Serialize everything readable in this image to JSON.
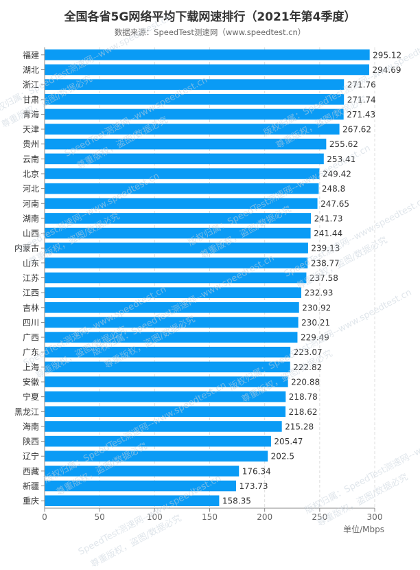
{
  "chart_data": {
    "type": "bar",
    "orientation": "horizontal",
    "title": "全国各省5G网络平均下载网速排行（2021年第4季度）",
    "subtitle": "数据来源：SpeedTest测速网（www.speedtest.cn）",
    "unit_label": "单位/Mbps",
    "categories": [
      "福建",
      "湖北",
      "浙江",
      "甘肃",
      "青海",
      "天津",
      "贵州",
      "云南",
      "北京",
      "河北",
      "河南",
      "湖南",
      "山西",
      "内蒙古",
      "山东",
      "江苏",
      "江西",
      "吉林",
      "四川",
      "广西",
      "广东",
      "上海",
      "安徽",
      "宁夏",
      "黑龙江",
      "海南",
      "陕西",
      "辽宁",
      "西藏",
      "新疆",
      "重庆"
    ],
    "values": [
      295.12,
      294.69,
      271.76,
      271.74,
      271.43,
      267.62,
      255.62,
      253.41,
      249.42,
      248.8,
      247.65,
      241.73,
      241.44,
      239.13,
      238.77,
      237.58,
      232.93,
      230.92,
      230.21,
      229.49,
      223.07,
      222.82,
      220.88,
      218.78,
      218.62,
      215.28,
      205.47,
      202.5,
      176.34,
      173.73,
      158.35
    ],
    "value_labels": [
      "295.12",
      "294.69",
      "271.76",
      "271.74",
      "271.43",
      "267.62",
      "255.62",
      "253.41",
      "249.42",
      "248.8",
      "247.65",
      "241.73",
      "241.44",
      "239.13",
      "238.77",
      "237.58",
      "232.93",
      "230.92",
      "230.21",
      "229.49",
      "223.07",
      "222.82",
      "220.88",
      "218.78",
      "218.62",
      "215.28",
      "205.47",
      "202.5",
      "176.34",
      "173.73",
      "158.35"
    ],
    "x_ticks": [
      "0",
      "50",
      "100",
      "150",
      "200",
      "250",
      "300"
    ],
    "xlim": [
      0,
      300
    ],
    "grid": "vertical-dashed",
    "bar_color": "#0a9bf5",
    "watermark": [
      "SpeedTest测速网--www.speedtest.cn",
      "版权归属：SpeedTest测速网--www.speedtest.cn",
      "尊重版权，盗图/数据必究"
    ]
  }
}
